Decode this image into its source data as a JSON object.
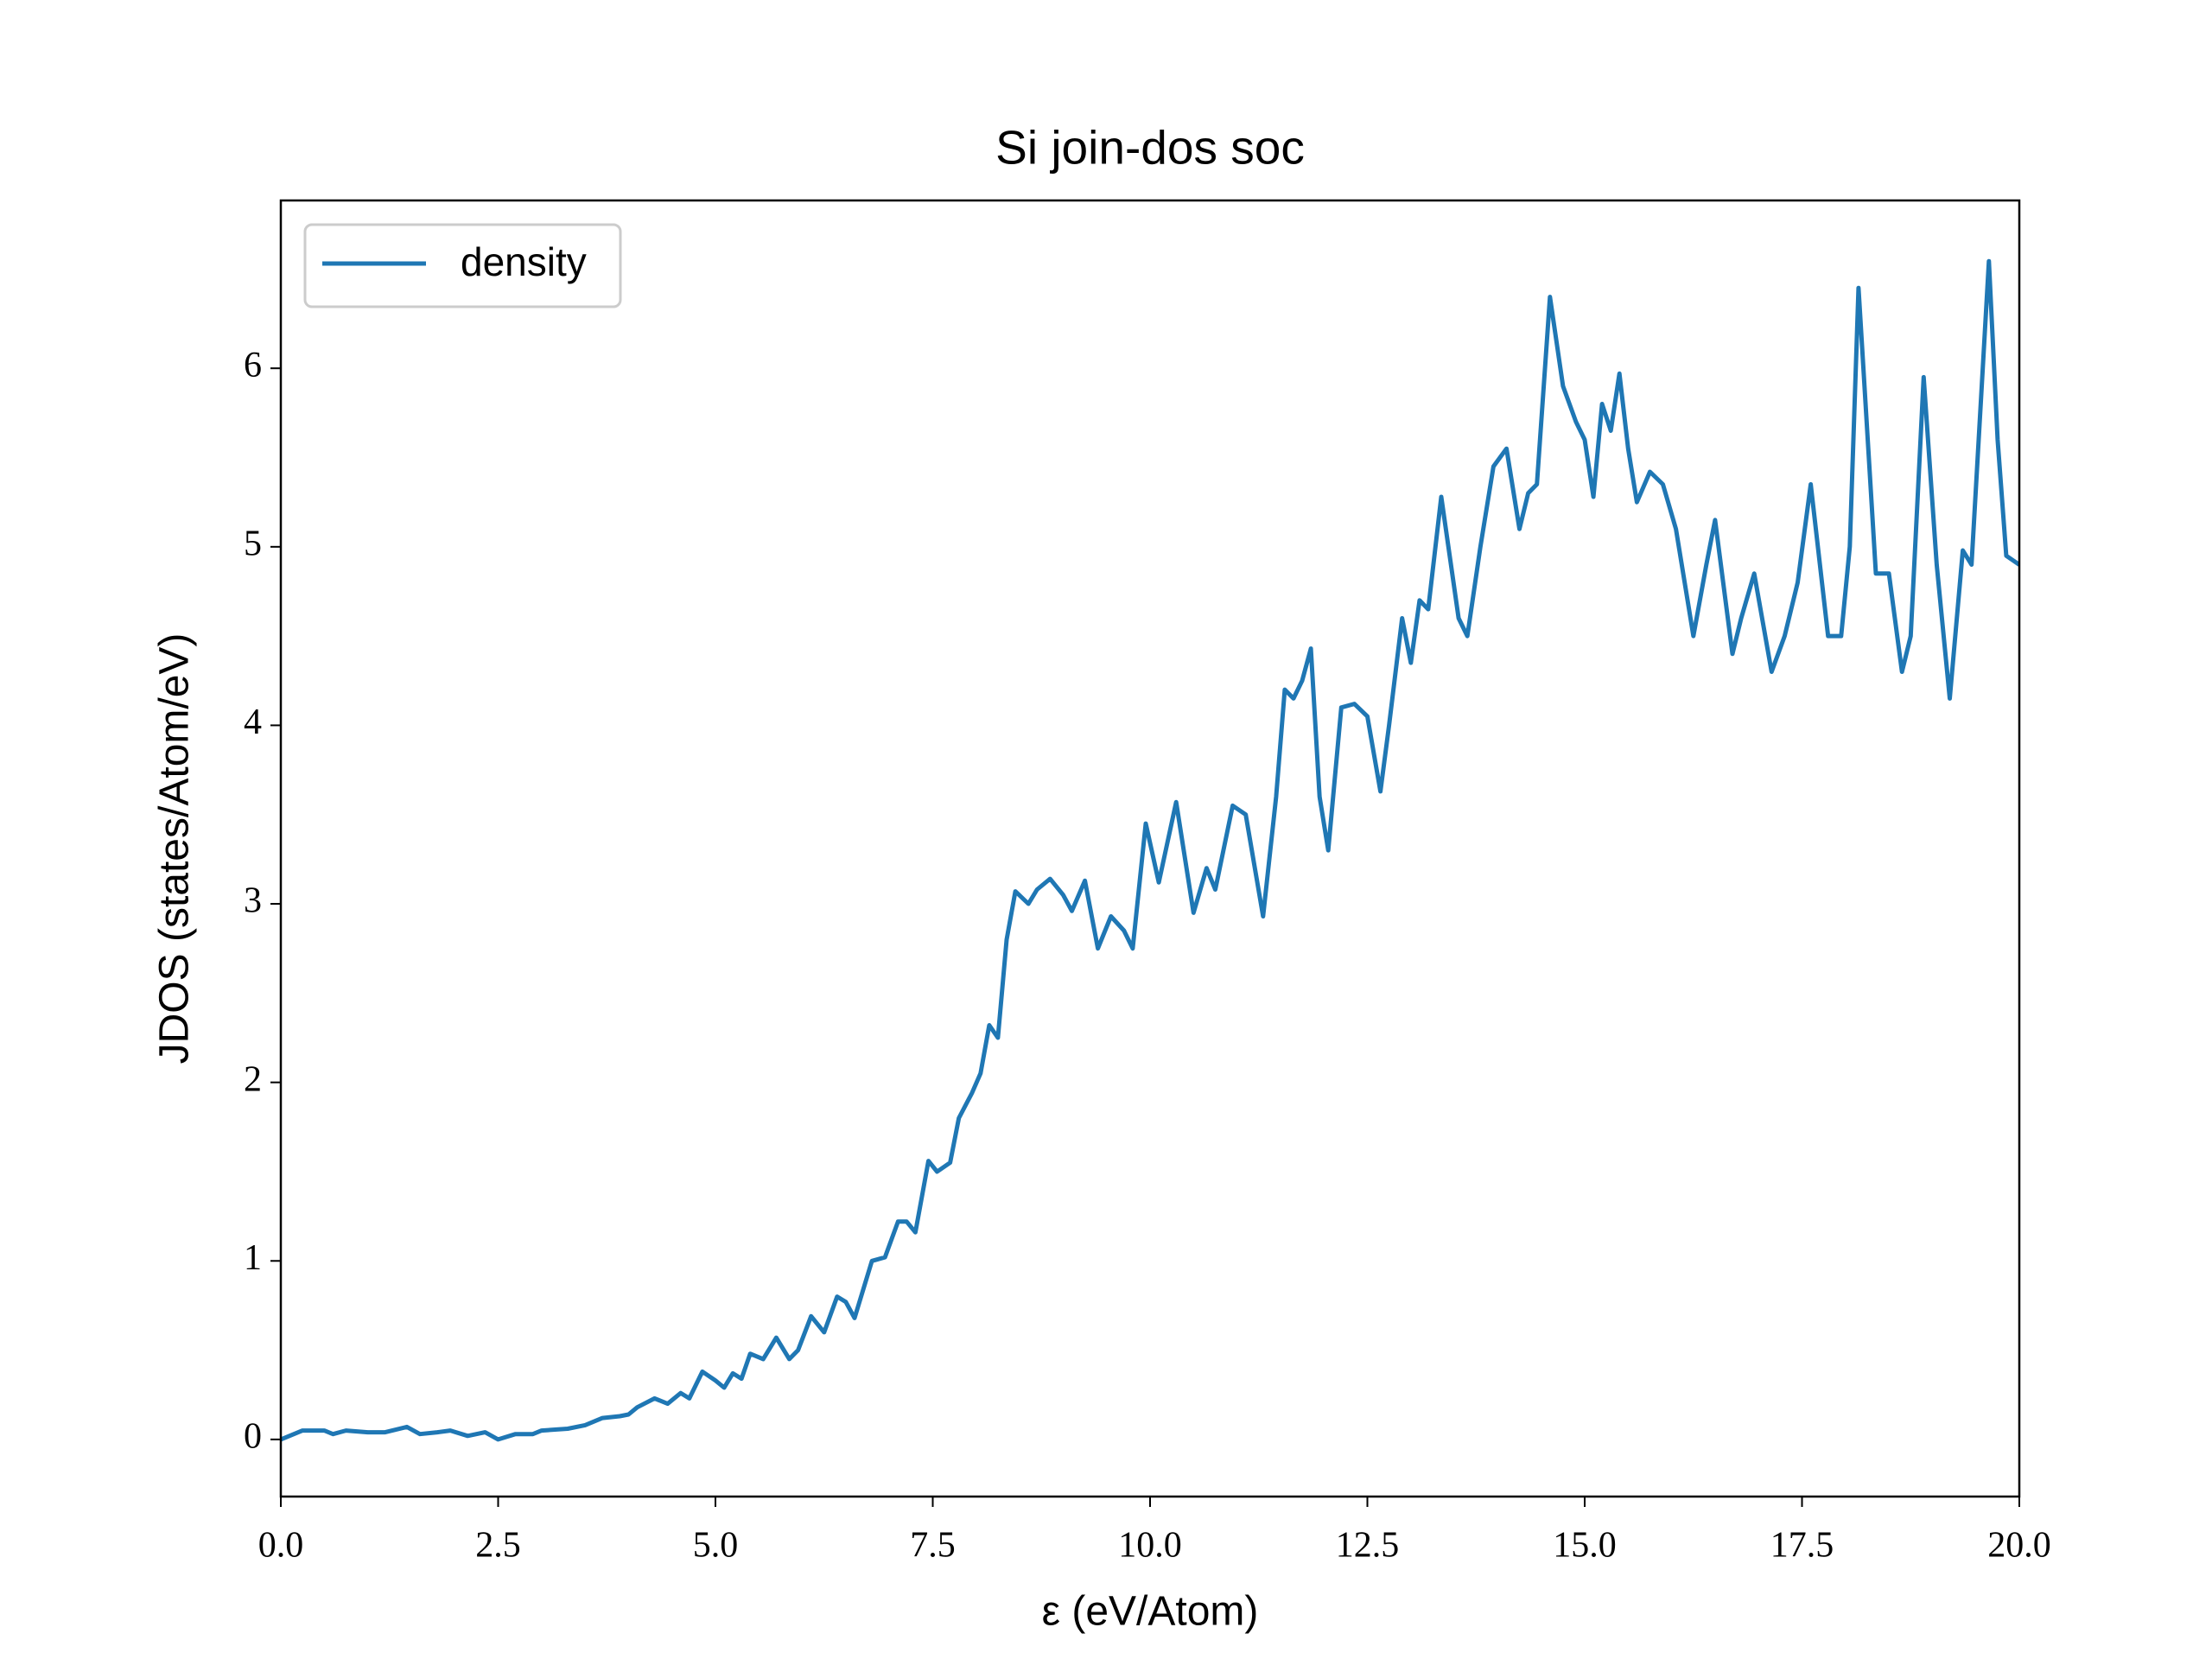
{
  "chart_data": {
    "type": "line",
    "title": "Si join-dos soc",
    "x_label": "ε (eV/Atom)",
    "y_label": "JDOS (states/Atom/eV)",
    "legend": "upper left",
    "xlim": [
      0,
      20
    ],
    "ylim": [
      -0.32,
      6.94
    ],
    "xticks": [
      {
        "value": 0,
        "label": "0.0"
      },
      {
        "value": 2.5,
        "label": "2.5"
      },
      {
        "value": 5,
        "label": "5.0"
      },
      {
        "value": 7.5,
        "label": "7.5"
      },
      {
        "value": 10,
        "label": "10.0"
      },
      {
        "value": 12.5,
        "label": "12.5"
      },
      {
        "value": 15,
        "label": "15.0"
      },
      {
        "value": 17.5,
        "label": "17.5"
      },
      {
        "value": 20,
        "label": "20.0"
      }
    ],
    "yticks": [
      0,
      1,
      2,
      3,
      4,
      5,
      6
    ],
    "x": [
      0,
      0.25,
      0.5,
      0.6,
      0.75,
      1.0,
      1.2,
      1.45,
      1.6,
      1.8,
      1.95,
      2.15,
      2.35,
      2.5,
      2.7,
      2.9,
      3.0,
      3.3,
      3.5,
      3.7,
      3.9,
      4.0,
      4.1,
      4.3,
      4.45,
      4.6,
      4.7,
      4.85,
      5.0,
      5.1,
      5.2,
      5.3,
      5.4,
      5.55,
      5.7,
      5.85,
      5.95,
      6.1,
      6.25,
      6.4,
      6.5,
      6.6,
      6.8,
      6.95,
      7.1,
      7.2,
      7.3,
      7.45,
      7.55,
      7.7,
      7.8,
      7.95,
      8.05,
      8.15,
      8.25,
      8.35,
      8.45,
      8.6,
      8.7,
      8.85,
      9.0,
      9.1,
      9.25,
      9.4,
      9.55,
      9.7,
      9.8,
      9.95,
      10.1,
      10.3,
      10.5,
      10.65,
      10.75,
      10.95,
      11.1,
      11.3,
      11.45,
      11.55,
      11.65,
      11.75,
      11.85,
      11.95,
      12.05,
      12.2,
      12.35,
      12.5,
      12.65,
      12.75,
      12.9,
      13.0,
      13.1,
      13.2,
      13.35,
      13.55,
      13.65,
      13.8,
      13.95,
      14.1,
      14.25,
      14.35,
      14.45,
      14.6,
      14.75,
      14.9,
      15.0,
      15.1,
      15.2,
      15.3,
      15.4,
      15.5,
      15.6,
      15.75,
      15.9,
      16.05,
      16.15,
      16.25,
      16.4,
      16.5,
      16.7,
      16.8,
      16.95,
      17.15,
      17.3,
      17.45,
      17.6,
      17.8,
      17.95,
      18.05,
      18.15,
      18.35,
      18.5,
      18.65,
      18.75,
      18.9,
      19.05,
      19.2,
      19.35,
      19.45,
      19.65,
      19.75,
      19.85,
      20.0
    ],
    "series": [
      {
        "name": "density",
        "color": "#1f77b4",
        "values": [
          0,
          0.05,
          0.05,
          0.03,
          0.05,
          0.04,
          0.04,
          0.07,
          0.03,
          0.04,
          0.05,
          0.02,
          0.04,
          0.0,
          0.03,
          0.03,
          0.05,
          0.06,
          0.08,
          0.12,
          0.13,
          0.14,
          0.18,
          0.23,
          0.2,
          0.26,
          0.23,
          0.38,
          0.33,
          0.29,
          0.37,
          0.34,
          0.48,
          0.45,
          0.57,
          0.45,
          0.5,
          0.69,
          0.6,
          0.8,
          0.77,
          0.68,
          1.0,
          1.02,
          1.22,
          1.22,
          1.16,
          1.56,
          1.5,
          1.55,
          1.8,
          1.94,
          2.05,
          2.32,
          2.25,
          2.8,
          3.07,
          3.0,
          3.08,
          3.14,
          3.05,
          2.96,
          3.13,
          2.75,
          2.93,
          2.85,
          2.75,
          3.45,
          3.12,
          3.57,
          2.95,
          3.2,
          3.08,
          3.55,
          3.5,
          2.93,
          3.6,
          4.2,
          4.15,
          4.25,
          4.43,
          3.6,
          3.3,
          4.1,
          4.12,
          4.05,
          3.63,
          4.0,
          4.6,
          4.35,
          4.7,
          4.65,
          5.28,
          4.6,
          4.5,
          5.0,
          5.45,
          5.55,
          5.1,
          5.3,
          5.35,
          6.4,
          5.9,
          5.7,
          5.6,
          5.28,
          5.8,
          5.65,
          5.97,
          5.55,
          5.25,
          5.42,
          5.35,
          5.1,
          4.8,
          4.5,
          4.9,
          5.15,
          4.4,
          4.6,
          4.85,
          4.3,
          4.5,
          4.8,
          5.35,
          4.5,
          4.5,
          5.0,
          6.45,
          4.85,
          4.85,
          4.3,
          4.5,
          5.95,
          4.9,
          4.15,
          4.98,
          4.9,
          6.6,
          5.6,
          4.95,
          4.9
        ]
      }
    ]
  }
}
